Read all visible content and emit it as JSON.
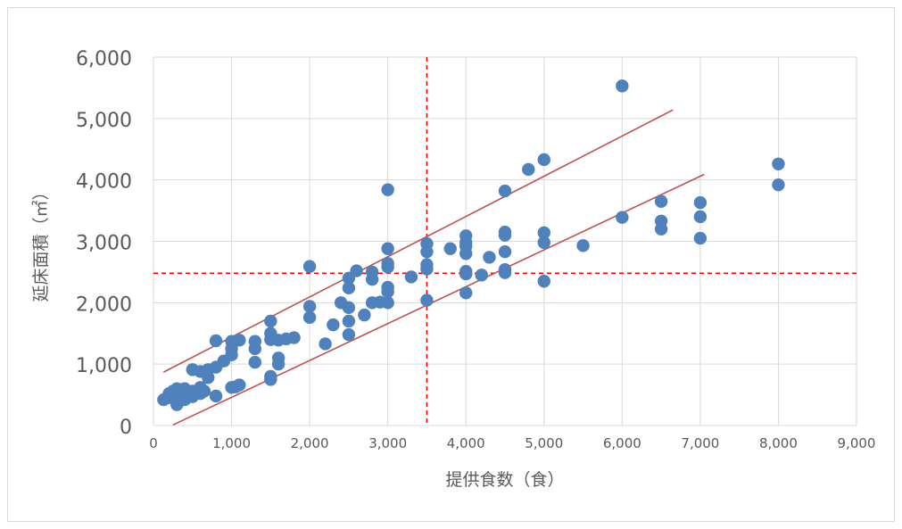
{
  "chart_data": {
    "type": "scatter",
    "xlabel": "提供食数（食）",
    "ylabel": "延床面積（㎡）",
    "xlim": [
      0,
      9000
    ],
    "ylim": [
      0,
      6000
    ],
    "x_ticks": [
      "0",
      "1,000",
      "2,000",
      "3,000",
      "4,000",
      "5,000",
      "6,000",
      "7,000",
      "8,000",
      "9,000"
    ],
    "y_ticks": [
      "0",
      "1,000",
      "2,000",
      "3,000",
      "4,000",
      "5,000",
      "6,000"
    ],
    "grid": true,
    "marker_color": "#4f81bd",
    "points": [
      [
        130,
        420
      ],
      [
        180,
        450
      ],
      [
        200,
        520
      ],
      [
        250,
        560
      ],
      [
        300,
        340
      ],
      [
        300,
        420
      ],
      [
        300,
        600
      ],
      [
        350,
        470
      ],
      [
        400,
        420
      ],
      [
        400,
        520
      ],
      [
        400,
        600
      ],
      [
        450,
        500
      ],
      [
        500,
        470
      ],
      [
        500,
        560
      ],
      [
        500,
        910
      ],
      [
        600,
        520
      ],
      [
        600,
        620
      ],
      [
        600,
        880
      ],
      [
        650,
        560
      ],
      [
        700,
        780
      ],
      [
        700,
        910
      ],
      [
        800,
        1380
      ],
      [
        800,
        480
      ],
      [
        800,
        950
      ],
      [
        900,
        1050
      ],
      [
        1000,
        620
      ],
      [
        1000,
        1150
      ],
      [
        1000,
        1250
      ],
      [
        1000,
        1370
      ],
      [
        1050,
        630
      ],
      [
        1100,
        660
      ],
      [
        1100,
        1390
      ],
      [
        1300,
        1030
      ],
      [
        1300,
        1250
      ],
      [
        1300,
        1370
      ],
      [
        1500,
        750
      ],
      [
        1500,
        800
      ],
      [
        1500,
        1400
      ],
      [
        1500,
        1500
      ],
      [
        1500,
        1700
      ],
      [
        1600,
        1000
      ],
      [
        1600,
        1100
      ],
      [
        1600,
        1390
      ],
      [
        1700,
        1410
      ],
      [
        1800,
        1430
      ],
      [
        2000,
        1760
      ],
      [
        2000,
        1940
      ],
      [
        2000,
        2590
      ],
      [
        2200,
        1330
      ],
      [
        2300,
        1640
      ],
      [
        2400,
        2000
      ],
      [
        2500,
        1480
      ],
      [
        2500,
        1700
      ],
      [
        2500,
        1920
      ],
      [
        2500,
        2240
      ],
      [
        2500,
        2400
      ],
      [
        2600,
        2520
      ],
      [
        2700,
        1800
      ],
      [
        2800,
        2000
      ],
      [
        2800,
        2380
      ],
      [
        2800,
        2500
      ],
      [
        2900,
        2010
      ],
      [
        3000,
        2000
      ],
      [
        3000,
        2180
      ],
      [
        3000,
        2250
      ],
      [
        3000,
        2580
      ],
      [
        3000,
        2640
      ],
      [
        3000,
        2880
      ],
      [
        3000,
        3840
      ],
      [
        3300,
        2420
      ],
      [
        3500,
        2040
      ],
      [
        3500,
        2550
      ],
      [
        3500,
        2620
      ],
      [
        3500,
        2830
      ],
      [
        3500,
        2960
      ],
      [
        3800,
        2880
      ],
      [
        4000,
        2160
      ],
      [
        4000,
        2470
      ],
      [
        4000,
        2510
      ],
      [
        4000,
        2800
      ],
      [
        4000,
        2920
      ],
      [
        4000,
        2980
      ],
      [
        4000,
        3090
      ],
      [
        4200,
        2450
      ],
      [
        4300,
        2740
      ],
      [
        4500,
        2490
      ],
      [
        4500,
        2540
      ],
      [
        4500,
        2830
      ],
      [
        4500,
        3100
      ],
      [
        4500,
        3150
      ],
      [
        4500,
        3820
      ],
      [
        4800,
        4170
      ],
      [
        5000,
        2350
      ],
      [
        5000,
        2980
      ],
      [
        5000,
        3140
      ],
      [
        5000,
        4330
      ],
      [
        5500,
        2930
      ],
      [
        6000,
        3390
      ],
      [
        6000,
        5530
      ],
      [
        6500,
        3200
      ],
      [
        6500,
        3330
      ],
      [
        6500,
        3650
      ],
      [
        7000,
        3050
      ],
      [
        7000,
        3400
      ],
      [
        7000,
        3630
      ],
      [
        8000,
        3920
      ],
      [
        8000,
        4260
      ]
    ],
    "trend_lines": [
      {
        "color": "#c0504d",
        "from": [
          130,
          870
        ],
        "to": [
          6650,
          5140
        ]
      },
      {
        "color": "#c0504d",
        "from": [
          250,
          10
        ],
        "to": [
          7050,
          4090
        ]
      }
    ],
    "reference_lines": [
      {
        "axis": "x",
        "value": 3500,
        "color": "#ff0000",
        "style": "dashed"
      },
      {
        "axis": "y",
        "value": 2480,
        "color": "#ff0000",
        "style": "dashed"
      }
    ]
  }
}
